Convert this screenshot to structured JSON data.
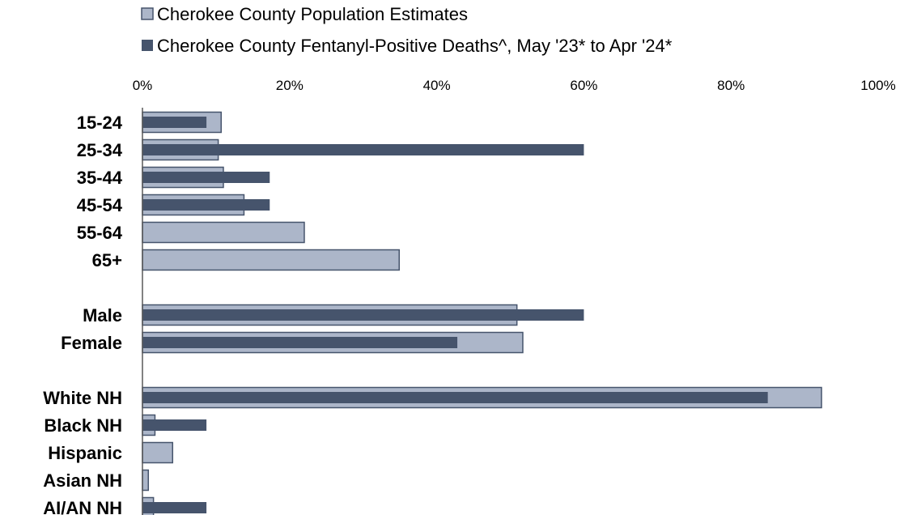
{
  "chart_data": {
    "type": "bar",
    "orientation": "horizontal",
    "xlim": [
      0,
      100
    ],
    "x_ticks": [
      "0%",
      "20%",
      "40%",
      "60%",
      "80%",
      "100%"
    ],
    "categories": [
      "15-24",
      "25-34",
      "35-44",
      "45-54",
      "55-64",
      "65+",
      "Male",
      "Female",
      "White NH",
      "Black NH",
      "Hispanic",
      "Asian NH",
      "AI/AN NH"
    ],
    "series": [
      {
        "name": "Cherokee County Population Estimates",
        "color": "#acb6c9",
        "values": [
          10.7,
          10.3,
          11.0,
          13.8,
          22.0,
          34.9,
          50.9,
          51.7,
          92.3,
          1.7,
          4.1,
          0.8,
          1.5
        ]
      },
      {
        "name": "Cherokee County Fentanyl-Positive Deaths^, May '23* to Apr '24*",
        "color": "#46546c",
        "values": [
          8.7,
          60.0,
          17.3,
          17.3,
          null,
          null,
          60.0,
          42.8,
          85.0,
          8.7,
          null,
          null,
          8.7
        ]
      }
    ],
    "legend_position": "top",
    "grid": false
  }
}
